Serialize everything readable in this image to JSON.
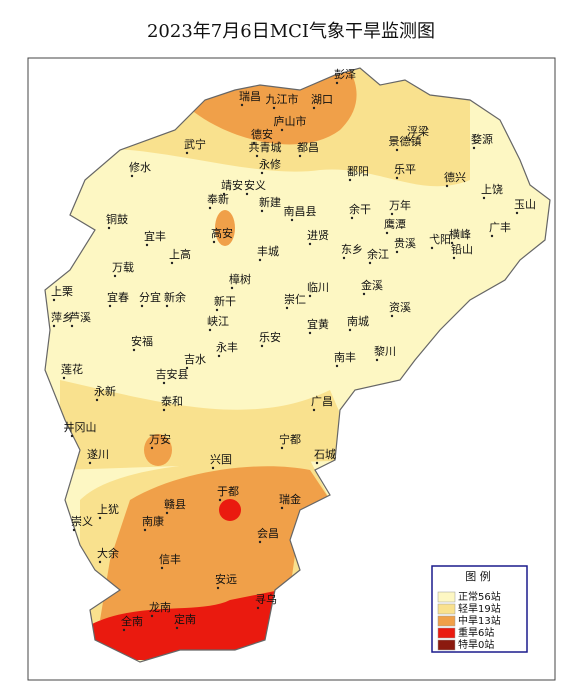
{
  "title": "2023年7月6日MCI气象干旱监测图",
  "legend": {
    "title": "图 例",
    "items": [
      "正常56站",
      "轻旱19站",
      "中旱13站",
      "重旱6站",
      "特旱0站"
    ]
  },
  "places": [
    "彭泽",
    "瑞昌",
    "九江市",
    "湖口",
    "庐山市",
    "德安",
    "武宁",
    "共青城",
    "都昌",
    "修水",
    "永修",
    "浮梁",
    "景德镇",
    "婺源",
    "鄱阳",
    "乐平",
    "德兴",
    "靖安",
    "安义",
    "奉新",
    "南昌县",
    "新建",
    "铜鼓",
    "高安",
    "宜丰",
    "进贤",
    "余干",
    "万年",
    "玉山",
    "上饶",
    "横峰",
    "弋阳",
    "铅山",
    "广丰",
    "上高",
    "丰城",
    "东乡",
    "余江",
    "贵溪",
    "鹰潭",
    "万载",
    "樟树",
    "临川",
    "金溪",
    "上栗",
    "宜春",
    "分宜",
    "新余",
    "新干",
    "崇仁",
    "资溪",
    "萍乡",
    "芦溪",
    "峡江",
    "宜黄",
    "南城",
    "安福",
    "永丰",
    "乐安",
    "黎川",
    "南丰",
    "吉水",
    "莲花",
    "吉安县",
    "永新",
    "泰和",
    "广昌",
    "井冈山",
    "万安",
    "宁都",
    "遂川",
    "兴国",
    "石城",
    "于都",
    "瑞金",
    "上犹",
    "赣县",
    "崇义",
    "南康",
    "会昌",
    "大余",
    "信丰",
    "安远",
    "龙南",
    "寻乌",
    "全南",
    "定南"
  ]
}
